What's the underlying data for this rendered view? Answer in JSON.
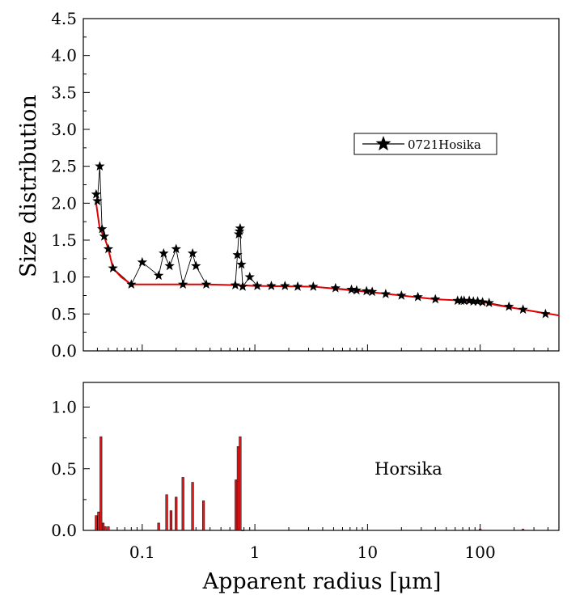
{
  "chart_data": [
    {
      "type": "line",
      "panel": "top",
      "ylabel": "Size distribution",
      "xlabel": "",
      "x_scale": "log",
      "xlim": [
        0.03,
        500
      ],
      "ylim": [
        0,
        4.5
      ],
      "grid": false,
      "legend": {
        "placement": "top-right",
        "entries": [
          "0721Hosika"
        ]
      },
      "y_ticks": [
        "0.0",
        "0.5",
        "1.0",
        "1.5",
        "2.0",
        "2.5",
        "3.0",
        "3.5",
        "4.0",
        "4.5"
      ],
      "series": [
        {
          "name": "0721Hosika",
          "color": "#000000",
          "marker": "star",
          "x": [
            0.039,
            0.04,
            0.042,
            0.044,
            0.046,
            0.05,
            0.055,
            0.08,
            0.1,
            0.14,
            0.155,
            0.175,
            0.2,
            0.23,
            0.28,
            0.3,
            0.37,
            0.67,
            0.7,
            0.72,
            0.73,
            0.74,
            0.76,
            0.78,
            0.9,
            1.05,
            1.4,
            1.85,
            2.4,
            3.3,
            5.2,
            7.2,
            8.0,
            9.8,
            11,
            14.5,
            20,
            28,
            40,
            63,
            68,
            72,
            80,
            87,
            95,
            105,
            120,
            180,
            240,
            380
          ],
          "y": [
            2.12,
            2.03,
            2.5,
            1.65,
            1.55,
            1.38,
            1.12,
            0.9,
            1.2,
            1.02,
            1.32,
            1.15,
            1.38,
            0.9,
            1.32,
            1.15,
            0.9,
            0.89,
            1.3,
            1.58,
            1.62,
            1.66,
            1.17,
            0.87,
            1.0,
            0.88,
            0.88,
            0.88,
            0.87,
            0.87,
            0.85,
            0.83,
            0.82,
            0.81,
            0.8,
            0.77,
            0.75,
            0.73,
            0.7,
            0.68,
            0.68,
            0.68,
            0.68,
            0.67,
            0.67,
            0.66,
            0.65,
            0.6,
            0.56,
            0.5
          ]
        },
        {
          "color": "#e00000",
          "marker": "none",
          "x": [
            0.039,
            0.042,
            0.046,
            0.05,
            0.055,
            0.065,
            0.08,
            0.37,
            0.7,
            1.0,
            3.3,
            10,
            40,
            100,
            140,
            240,
            500
          ],
          "y": [
            2.0,
            1.65,
            1.55,
            1.38,
            1.12,
            1.0,
            0.9,
            0.9,
            0.89,
            0.88,
            0.87,
            0.8,
            0.7,
            0.67,
            0.62,
            0.56,
            0.48
          ]
        }
      ]
    },
    {
      "type": "bar",
      "panel": "bottom",
      "xlabel": "Apparent radius [μm]",
      "ylabel": "",
      "x_scale": "log",
      "xlim": [
        0.03,
        500
      ],
      "ylim": [
        0,
        1.2
      ],
      "grid": false,
      "x_ticks": [
        "0.1",
        "1",
        "10",
        "100"
      ],
      "y_ticks": [
        "0.0",
        "0.5",
        "1.0"
      ],
      "annotation": "Horsika",
      "series": [
        {
          "color": "#e31a1c",
          "x": [
            0.039,
            0.041,
            0.043,
            0.045,
            0.047,
            0.05,
            0.14,
            0.165,
            0.18,
            0.2,
            0.23,
            0.28,
            0.35,
            0.68,
            0.71,
            0.74,
            0.78,
            100,
            240
          ],
          "y": [
            0.12,
            0.15,
            0.76,
            0.06,
            0.03,
            0.03,
            0.06,
            0.29,
            0.16,
            0.27,
            0.43,
            0.39,
            0.24,
            0.41,
            0.68,
            0.76,
            0.0,
            0.01,
            0.01
          ]
        }
      ]
    }
  ]
}
